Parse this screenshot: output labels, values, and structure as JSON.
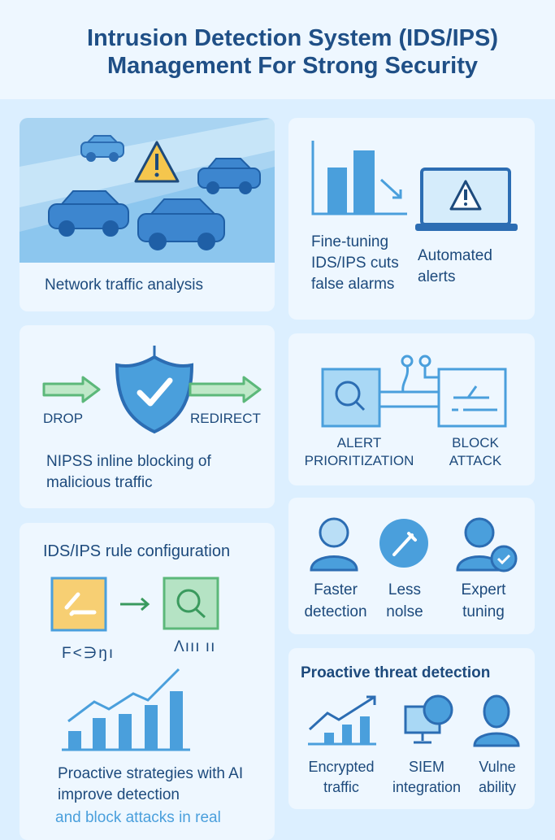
{
  "header": {
    "title_line1": "Intrusion Detection System (IDS/IPS)",
    "title_line2": "Management For Strong Security"
  },
  "cards": {
    "traffic": {
      "label": "Network traffic analysis"
    },
    "tuning": {
      "label": "Fine-tuning IDS/IPS cuts false alarms",
      "alerts": "Automated alerts"
    },
    "nips": {
      "drop": "DROP",
      "redirect": "REDIRECT",
      "label": "NIPSS inline blocking of malicious traffic"
    },
    "prioritization": {
      "alert": "ALERT PRIORITIZATION",
      "block": "BLOCK ATTACK"
    },
    "rules": {
      "title": "IDS/IPS rule configuration",
      "glyph_left": "F<∋ŋı",
      "glyph_right": "Λııı ıı",
      "label": "Proactive strategies with AI improve detection",
      "label_tail": "and block attacks in real"
    },
    "benefits": {
      "items": [
        "Faster detection",
        "Less nolse",
        "Expert tuning"
      ]
    },
    "proactive": {
      "title": "Proactive threat detection",
      "items": [
        "Encrypted traffic",
        "SIEM integration",
        "Vulne ability"
      ]
    }
  },
  "colors": {
    "title": "#1f4f86",
    "accent": "#4a9fdc",
    "warning": "#f5c64d",
    "green": "#5cb87a"
  }
}
